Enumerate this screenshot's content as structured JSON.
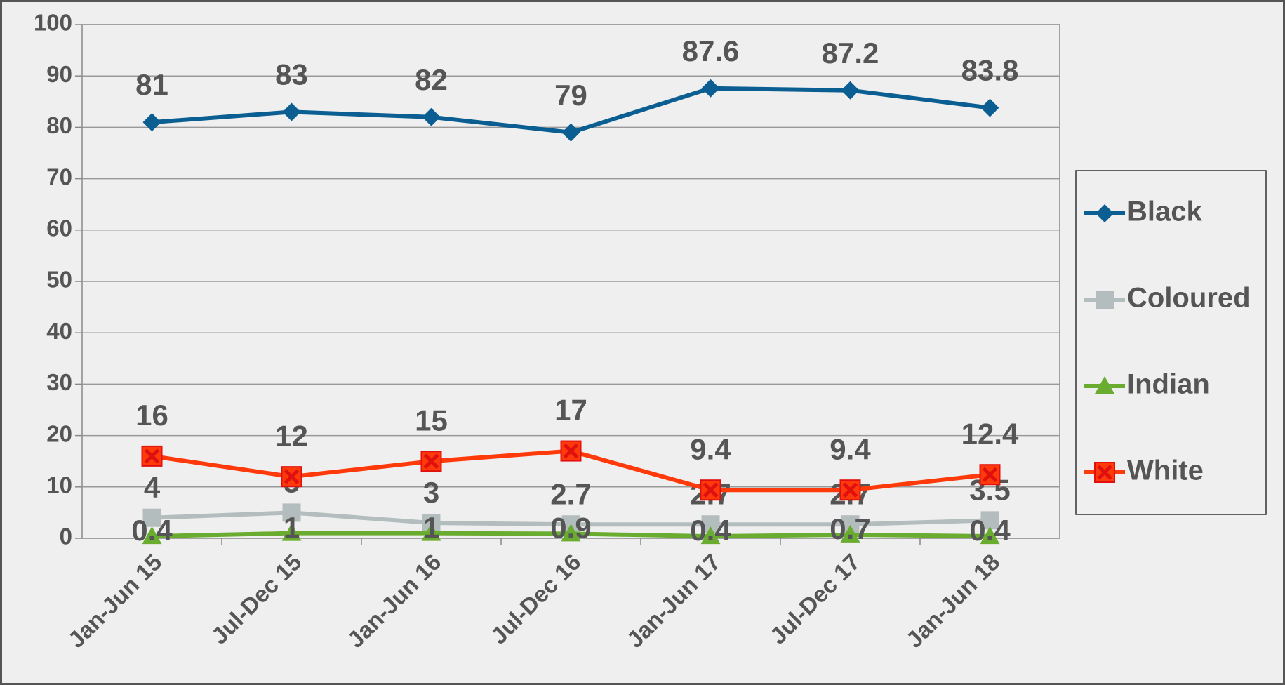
{
  "chart_data": {
    "type": "line",
    "categories": [
      "Jan-Jun 15",
      "Jul-Dec 15",
      "Jan-Jun 16",
      "Jul-Dec 16",
      "Jan-Jun 17",
      "Jul-Dec 17",
      "Jan-Jun 18"
    ],
    "series": [
      {
        "name": "Black",
        "color": "#0a5e91",
        "marker": "diamond",
        "values": [
          81,
          83,
          82,
          79,
          87.6,
          87.2,
          83.8
        ]
      },
      {
        "name": "Coloured",
        "color": "#b4bdbd",
        "marker": "square",
        "values": [
          4,
          5,
          3,
          2.7,
          2.7,
          2.7,
          3.5
        ]
      },
      {
        "name": "Indian",
        "color": "#6aac2f",
        "marker": "triangle",
        "values": [
          0.4,
          1,
          1,
          0.9,
          0.4,
          0.7,
          0.4
        ]
      },
      {
        "name": "White",
        "color": "#ff3a0a",
        "marker": "xsquare",
        "values": [
          16,
          12,
          15,
          17,
          9.4,
          9.4,
          12.4
        ]
      }
    ],
    "ylim": [
      0,
      100
    ],
    "yticks": [
      0,
      10,
      20,
      30,
      40,
      50,
      60,
      70,
      80,
      90,
      100
    ],
    "grid": true,
    "legend": "right"
  }
}
